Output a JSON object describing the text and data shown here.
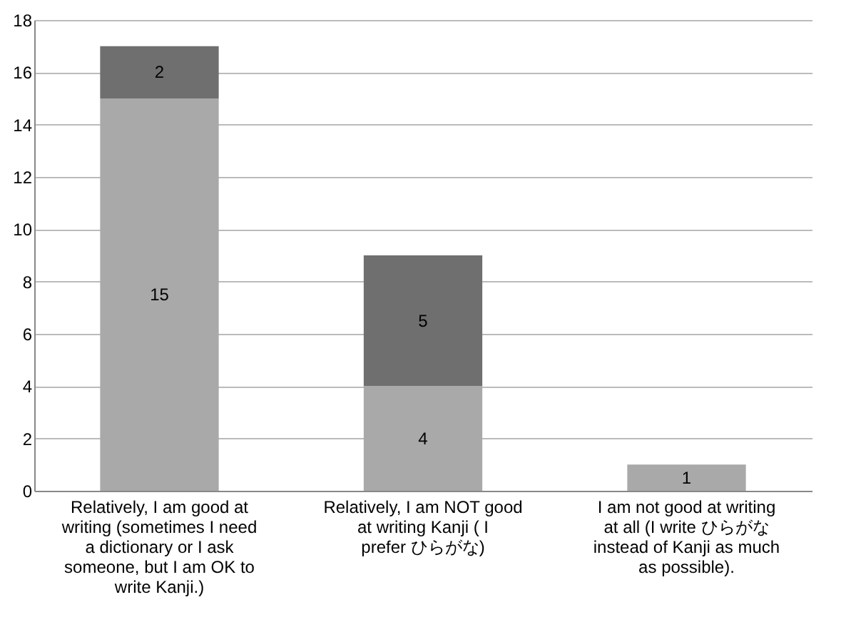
{
  "chart_data": {
    "type": "bar",
    "stacked": true,
    "data_labels": true,
    "grid": "y",
    "categories": [
      "Relatively, I am good at writing (sometimes I need a dictionary or I ask someone, but I am OK to write Kanji.)",
      "Relatively, I am NOT good at writing Kanji ( I prefer ひらがな)",
      "I am not good at writing at all (I write ひらがな instead of Kanji as much as possible)."
    ],
    "series": [
      {
        "color": "#a9a9a9",
        "values": [
          15,
          4,
          1
        ]
      },
      {
        "color": "#6f6f6f",
        "values": [
          2,
          5,
          null
        ]
      }
    ],
    "ylim": [
      0,
      18
    ],
    "yticks": [
      0,
      2,
      4,
      6,
      8,
      10,
      12,
      14,
      16,
      18
    ]
  }
}
